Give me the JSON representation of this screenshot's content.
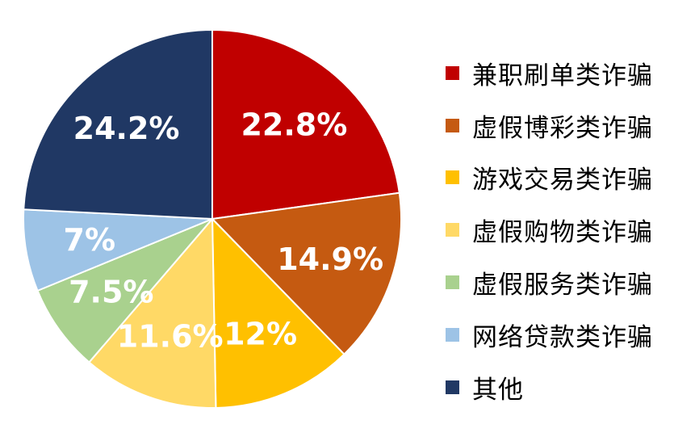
{
  "chart_data": {
    "type": "pie",
    "categories": [
      "兼职刷单类诈骗",
      "虚假博彩类诈骗",
      "游戏交易类诈骗",
      "虚假购物类诈骗",
      "虚假服务类诈骗",
      "网络贷款类诈骗",
      "其他"
    ],
    "values": [
      22.8,
      14.9,
      12,
      11.6,
      7.5,
      7,
      24.2
    ],
    "data_labels": [
      "22.8%",
      "14.9%",
      "12%",
      "11.6%",
      "7.5%",
      "7%",
      "24.2%"
    ],
    "colors": [
      "#C00000",
      "#C55A11",
      "#FFC000",
      "#FFD966",
      "#A9D18E",
      "#9DC3E6",
      "#203864"
    ],
    "start_angle": "12 o'clock",
    "direction": "clockwise",
    "legend_position": "right"
  }
}
